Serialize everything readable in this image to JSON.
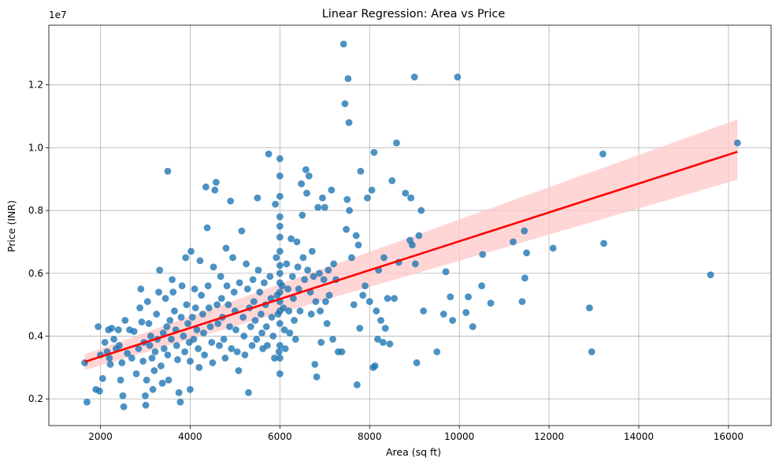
{
  "chart_data": {
    "type": "scatter",
    "title": "Linear Regression: Area vs Price",
    "xlabel": "Area (sq ft)",
    "ylabel": "Price (INR)",
    "y_offset_label": "1e7",
    "xlim": [
      850,
      16950
    ],
    "ylim": [
      1150000,
      13900000
    ],
    "xticks": [
      2000,
      4000,
      6000,
      8000,
      10000,
      12000,
      14000,
      16000
    ],
    "yticks": [
      2000000,
      4000000,
      6000000,
      8000000,
      10000000,
      12000000
    ],
    "ytick_labels": [
      "0.2",
      "0.4",
      "0.6",
      "0.8",
      "1.0",
      "1.2"
    ],
    "grid": true,
    "colors": {
      "points": "#1f77b4",
      "line": "#ff0000",
      "band": "#ffc8c8"
    },
    "regression": {
      "x": [
        1650,
        16200
      ],
      "y": [
        3180000,
        9870000
      ],
      "ci_lower": [
        2920000,
        8980000
      ],
      "ci_upper": [
        3420000,
        10900000
      ]
    },
    "points": [
      [
        1650,
        3150000
      ],
      [
        1700,
        1900000
      ],
      [
        1900,
        2300000
      ],
      [
        1950,
        4300000
      ],
      [
        1980,
        2250000
      ],
      [
        2000,
        3400000
      ],
      [
        2050,
        2650000
      ],
      [
        2100,
        3800000
      ],
      [
        2150,
        3500000
      ],
      [
        2180,
        4200000
      ],
      [
        2200,
        3300000
      ],
      [
        2220,
        3100000
      ],
      [
        2250,
        4250000
      ],
      [
        2300,
        3900000
      ],
      [
        2350,
        3600000
      ],
      [
        2400,
        4200000
      ],
      [
        2420,
        3700000
      ],
      [
        2450,
        2600000
      ],
      [
        2480,
        3150000
      ],
      [
        2500,
        2100000
      ],
      [
        2520,
        1750000
      ],
      [
        2550,
        4500000
      ],
      [
        2600,
        3450000
      ],
      [
        2650,
        4200000
      ],
      [
        2700,
        3300000
      ],
      [
        2750,
        4150000
      ],
      [
        2800,
        2800000
      ],
      [
        2850,
        3600000
      ],
      [
        2880,
        4900000
      ],
      [
        2900,
        5500000
      ],
      [
        2920,
        4450000
      ],
      [
        2950,
        3200000
      ],
      [
        2970,
        3800000
      ],
      [
        3000,
        2100000
      ],
      [
        3010,
        1800000
      ],
      [
        3030,
        2600000
      ],
      [
        3050,
        5100000
      ],
      [
        3080,
        4400000
      ],
      [
        3100,
        3700000
      ],
      [
        3120,
        4000000
      ],
      [
        3150,
        3300000
      ],
      [
        3170,
        2300000
      ],
      [
        3200,
        2900000
      ],
      [
        3220,
        3500000
      ],
      [
        3250,
        4700000
      ],
      [
        3270,
        3900000
      ],
      [
        3300,
        5400000
      ],
      [
        3320,
        6100000
      ],
      [
        3350,
        3050000
      ],
      [
        3380,
        2500000
      ],
      [
        3400,
        4100000
      ],
      [
        3420,
        3600000
      ],
      [
        3450,
        5200000
      ],
      [
        3480,
        4300000
      ],
      [
        3500,
        3400000
      ],
      [
        3500,
        9250000
      ],
      [
        3520,
        2600000
      ],
      [
        3550,
        4500000
      ],
      [
        3580,
        3900000
      ],
      [
        3600,
        5800000
      ],
      [
        3620,
        5400000
      ],
      [
        3650,
        4800000
      ],
      [
        3680,
        4200000
      ],
      [
        3700,
        3700000
      ],
      [
        3720,
        3250000
      ],
      [
        3750,
        2200000
      ],
      [
        3780,
        1900000
      ],
      [
        3800,
        4600000
      ],
      [
        3820,
        5600000
      ],
      [
        3850,
        4000000
      ],
      [
        3880,
        3500000
      ],
      [
        3900,
        6500000
      ],
      [
        3920,
        5000000
      ],
      [
        3950,
        4400000
      ],
      [
        3980,
        3800000
      ],
      [
        4000,
        3200000
      ],
      [
        4000,
        2300000
      ],
      [
        4020,
        6700000
      ],
      [
        4050,
        4600000
      ],
      [
        4080,
        3900000
      ],
      [
        4100,
        5500000
      ],
      [
        4120,
        4900000
      ],
      [
        4150,
        4200000
      ],
      [
        4180,
        3600000
      ],
      [
        4200,
        3000000
      ],
      [
        4220,
        6400000
      ],
      [
        4250,
        5300000
      ],
      [
        4280,
        4700000
      ],
      [
        4300,
        4100000
      ],
      [
        4320,
        3400000
      ],
      [
        4350,
        8750000
      ],
      [
        4380,
        7450000
      ],
      [
        4400,
        5600000
      ],
      [
        4420,
        4900000
      ],
      [
        4450,
        4300000
      ],
      [
        4480,
        3800000
      ],
      [
        4500,
        3150000
      ],
      [
        4520,
        6200000
      ],
      [
        4550,
        8650000
      ],
      [
        4580,
        8900000
      ],
      [
        4600,
        5000000
      ],
      [
        4620,
        4400000
      ],
      [
        4650,
        3700000
      ],
      [
        4680,
        5900000
      ],
      [
        4700,
        5200000
      ],
      [
        4720,
        4600000
      ],
      [
        4750,
        3900000
      ],
      [
        4780,
        3300000
      ],
      [
        4800,
        6800000
      ],
      [
        4820,
        5600000
      ],
      [
        4850,
        5000000
      ],
      [
        4880,
        4300000
      ],
      [
        4900,
        8300000
      ],
      [
        4920,
        3600000
      ],
      [
        4950,
        6500000
      ],
      [
        4980,
        5400000
      ],
      [
        5000,
        4800000
      ],
      [
        5020,
        4200000
      ],
      [
        5050,
        3500000
      ],
      [
        5080,
        2900000
      ],
      [
        5100,
        5700000
      ],
      [
        5150,
        7350000
      ],
      [
        5180,
        4600000
      ],
      [
        5200,
        4000000
      ],
      [
        5220,
        3400000
      ],
      [
        5250,
        6300000
      ],
      [
        5280,
        5500000
      ],
      [
        5300,
        2200000
      ],
      [
        5320,
        4900000
      ],
      [
        5350,
        4300000
      ],
      [
        5380,
        3700000
      ],
      [
        5400,
        5800000
      ],
      [
        5420,
        5100000
      ],
      [
        5450,
        4500000
      ],
      [
        5480,
        3900000
      ],
      [
        5500,
        8400000
      ],
      [
        5520,
        6100000
      ],
      [
        5550,
        5400000
      ],
      [
        5580,
        4700000
      ],
      [
        5600,
        4100000
      ],
      [
        5620,
        3600000
      ],
      [
        5650,
        5700000
      ],
      [
        5680,
        5000000
      ],
      [
        5700,
        4300000
      ],
      [
        5720,
        3700000
      ],
      [
        5750,
        9800000
      ],
      [
        5780,
        5900000
      ],
      [
        5800,
        5200000
      ],
      [
        5820,
        4600000
      ],
      [
        5850,
        4000000
      ],
      [
        5880,
        3300000
      ],
      [
        5900,
        8200000
      ],
      [
        5920,
        6500000
      ],
      [
        5940,
        5300000
      ],
      [
        5960,
        4700000
      ],
      [
        5980,
        3500000
      ],
      [
        6000,
        9650000
      ],
      [
        6000,
        9100000
      ],
      [
        6000,
        8450000
      ],
      [
        6000,
        7800000
      ],
      [
        6000,
        7500000
      ],
      [
        6000,
        7150000
      ],
      [
        6000,
        6700000
      ],
      [
        6000,
        6250000
      ],
      [
        6000,
        6000000
      ],
      [
        6000,
        5700000
      ],
      [
        6000,
        5400000
      ],
      [
        6000,
        5100000
      ],
      [
        6000,
        4800000
      ],
      [
        6000,
        4400000
      ],
      [
        6000,
        3700000
      ],
      [
        6000,
        3300000
      ],
      [
        6000,
        2800000
      ],
      [
        6050,
        5600000
      ],
      [
        6080,
        4900000
      ],
      [
        6100,
        4200000
      ],
      [
        6120,
        3600000
      ],
      [
        6150,
        6300000
      ],
      [
        6180,
        5500000
      ],
      [
        6200,
        4800000
      ],
      [
        6220,
        4100000
      ],
      [
        6250,
        7100000
      ],
      [
        6280,
        5900000
      ],
      [
        6300,
        5200000
      ],
      [
        6320,
        4500000
      ],
      [
        6350,
        3900000
      ],
      [
        6380,
        7000000
      ],
      [
        6400,
        6200000
      ],
      [
        6420,
        5500000
      ],
      [
        6450,
        4800000
      ],
      [
        6480,
        8850000
      ],
      [
        6500,
        7850000
      ],
      [
        6520,
        6500000
      ],
      [
        6550,
        5800000
      ],
      [
        6580,
        9300000
      ],
      [
        6600,
        8550000
      ],
      [
        6620,
        6100000
      ],
      [
        6650,
        9100000
      ],
      [
        6680,
        5400000
      ],
      [
        6700,
        4700000
      ],
      [
        6720,
        6700000
      ],
      [
        6750,
        5900000
      ],
      [
        6780,
        3100000
      ],
      [
        6800,
        5100000
      ],
      [
        6820,
        2700000
      ],
      [
        6850,
        8100000
      ],
      [
        6880,
        6000000
      ],
      [
        6900,
        4800000
      ],
      [
        6920,
        3800000
      ],
      [
        6950,
        8400000
      ],
      [
        6980,
        5800000
      ],
      [
        7000,
        8100000
      ],
      [
        7020,
        5100000
      ],
      [
        7050,
        4400000
      ],
      [
        7080,
        6100000
      ],
      [
        7100,
        5300000
      ],
      [
        7150,
        8650000
      ],
      [
        7180,
        3900000
      ],
      [
        7200,
        6300000
      ],
      [
        7250,
        5800000
      ],
      [
        7300,
        3500000
      ],
      [
        7380,
        3500000
      ],
      [
        7420,
        13300000
      ],
      [
        7450,
        11400000
      ],
      [
        7480,
        7400000
      ],
      [
        7500,
        8350000
      ],
      [
        7520,
        12200000
      ],
      [
        7540,
        10800000
      ],
      [
        7550,
        8000000
      ],
      [
        7600,
        6500000
      ],
      [
        7650,
        5000000
      ],
      [
        7700,
        7200000
      ],
      [
        7720,
        2450000
      ],
      [
        7750,
        6900000
      ],
      [
        7780,
        4250000
      ],
      [
        7800,
        9250000
      ],
      [
        7850,
        5300000
      ],
      [
        7900,
        5600000
      ],
      [
        7950,
        8400000
      ],
      [
        8000,
        5100000
      ],
      [
        8050,
        8650000
      ],
      [
        8080,
        3000000
      ],
      [
        8100,
        9850000
      ],
      [
        8120,
        3050000
      ],
      [
        8150,
        4800000
      ],
      [
        8180,
        3900000
      ],
      [
        8200,
        6100000
      ],
      [
        8250,
        4500000
      ],
      [
        8300,
        3800000
      ],
      [
        8320,
        6500000
      ],
      [
        8350,
        4250000
      ],
      [
        8400,
        5200000
      ],
      [
        8450,
        3750000
      ],
      [
        8500,
        8950000
      ],
      [
        8550,
        5200000
      ],
      [
        8600,
        10150000
      ],
      [
        8650,
        6350000
      ],
      [
        8800,
        8550000
      ],
      [
        8900,
        7050000
      ],
      [
        8920,
        8400000
      ],
      [
        8950,
        6900000
      ],
      [
        9000,
        12250000
      ],
      [
        9020,
        6300000
      ],
      [
        9050,
        3150000
      ],
      [
        9100,
        7200000
      ],
      [
        9150,
        8000000
      ],
      [
        9200,
        4800000
      ],
      [
        9500,
        3500000
      ],
      [
        9650,
        4700000
      ],
      [
        9700,
        6050000
      ],
      [
        9800,
        5250000
      ],
      [
        9850,
        4500000
      ],
      [
        9960,
        12250000
      ],
      [
        10150,
        4750000
      ],
      [
        10200,
        5250000
      ],
      [
        10300,
        4300000
      ],
      [
        10500,
        5600000
      ],
      [
        10520,
        6600000
      ],
      [
        10700,
        5050000
      ],
      [
        11200,
        7000000
      ],
      [
        11400,
        5100000
      ],
      [
        11450,
        7350000
      ],
      [
        11460,
        5850000
      ],
      [
        11500,
        6650000
      ],
      [
        12090,
        6800000
      ],
      [
        12900,
        4900000
      ],
      [
        12950,
        3500000
      ],
      [
        13200,
        9800000
      ],
      [
        13220,
        6950000
      ],
      [
        15600,
        5950000
      ],
      [
        16200,
        10150000
      ]
    ]
  }
}
